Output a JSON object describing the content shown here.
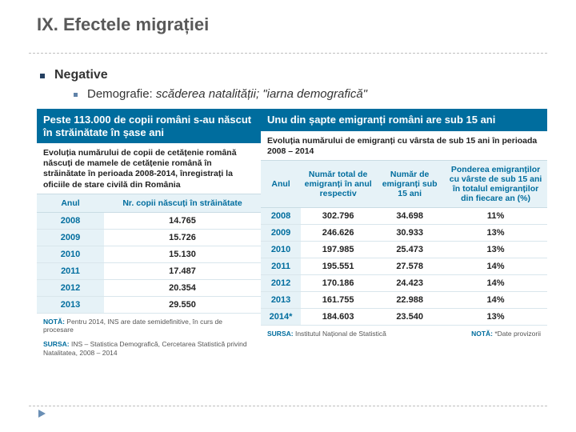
{
  "title": "IX. Efectele migrației",
  "bullets": {
    "negative": "Negative",
    "sub": "Demografie: ",
    "sub_ital": "scăderea natalității; \"iarna demografică\""
  },
  "left": {
    "banner": "Peste 113.000 de copii români s-au născut în străinătate în șase ani",
    "subhead": "Evoluția numărului de copii de cetățenie română născuți de mamele de cetățenie română în străinătate în perioada 2008-2014, înregistrați la oficiile de stare civilă din România",
    "header": {
      "year": "Anul",
      "val": "Nr. copii născuți în străinătate"
    },
    "rows": [
      {
        "year": "2008",
        "val": "14.765"
      },
      {
        "year": "2009",
        "val": "15.726"
      },
      {
        "year": "2010",
        "val": "15.130"
      },
      {
        "year": "2011",
        "val": "17.487"
      },
      {
        "year": "2012",
        "val": "20.354"
      },
      {
        "year": "2013",
        "val": "29.550"
      }
    ],
    "note": "Pentru 2014, INS are date semidefinitive, în curs de procesare",
    "source": "INS – Statistica Demografică, Cercetarea Statistică privind Natalitatea, 2008 – 2014"
  },
  "right": {
    "banner": "Unu din șapte emigranți români are sub 15 ani",
    "subhead": "Evoluția numărului de emigranți cu vârsta de sub 15 ani în perioada 2008 – 2014",
    "header": {
      "year": "Anul",
      "c1": "Număr total de emigranți în anul respectiv",
      "c2": "Număr de emigranți sub 15 ani",
      "c3": "Ponderea emigranților cu vârste de sub 15 ani în totalul emigranților din fiecare an (%)"
    },
    "rows": [
      {
        "year": "2008",
        "c1": "302.796",
        "c2": "34.698",
        "c3": "11%"
      },
      {
        "year": "2009",
        "c1": "246.626",
        "c2": "30.933",
        "c3": "13%"
      },
      {
        "year": "2010",
        "c1": "197.985",
        "c2": "25.473",
        "c3": "13%"
      },
      {
        "year": "2011",
        "c1": "195.551",
        "c2": "27.578",
        "c3": "14%"
      },
      {
        "year": "2012",
        "c1": "170.186",
        "c2": "24.423",
        "c3": "14%"
      },
      {
        "year": "2013",
        "c1": "161.755",
        "c2": "22.988",
        "c3": "14%"
      },
      {
        "year": "2014*",
        "c1": "184.603",
        "c2": "23.540",
        "c3": "13%"
      }
    ],
    "note": "*Date provizorii",
    "source": "Institutul Național de Statistică"
  },
  "labels": {
    "nota": "NOTĂ:",
    "sursa": "SURSA:"
  }
}
